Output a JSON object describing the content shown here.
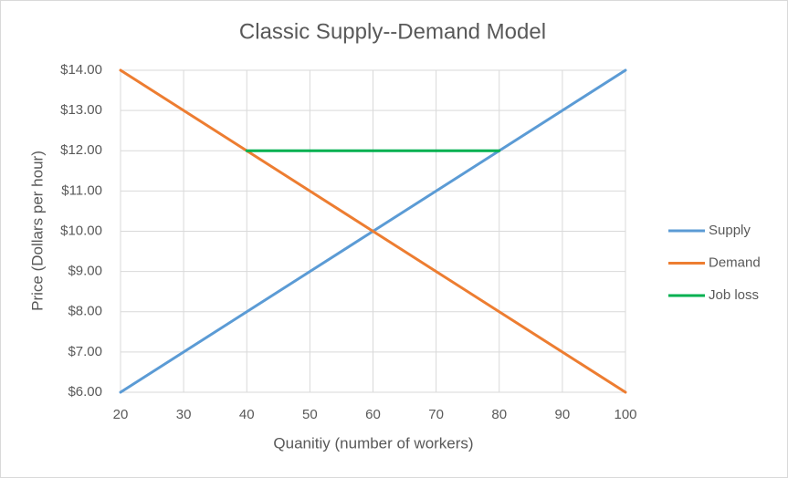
{
  "chart_data": {
    "type": "line",
    "title": "Classic Supply--Demand Model",
    "x_label": "Quanitiy (number of workers)",
    "y_label": "Price (Dollars per hour)",
    "xlim": [
      20,
      100
    ],
    "xticks": [
      20,
      30,
      40,
      50,
      60,
      70,
      80,
      90,
      100
    ],
    "ylim": [
      6,
      14
    ],
    "yticks": [
      {
        "value": 6,
        "label": "$6.00"
      },
      {
        "value": 7,
        "label": "$7.00"
      },
      {
        "value": 8,
        "label": "$8.00"
      },
      {
        "value": 9,
        "label": "$9.00"
      },
      {
        "value": 10,
        "label": "$10.00"
      },
      {
        "value": 11,
        "label": "$11.00"
      },
      {
        "value": 12,
        "label": "$12.00"
      },
      {
        "value": 13,
        "label": "$13.00"
      },
      {
        "value": 14,
        "label": "$14.00"
      }
    ],
    "grid": true,
    "legend": "right",
    "series": [
      {
        "name": "Supply",
        "color": "#5b9bd5",
        "x": [
          20,
          30,
          40,
          50,
          60,
          70,
          80,
          90,
          100
        ],
        "values": [
          6,
          7,
          8,
          9,
          10,
          11,
          12,
          13,
          14
        ]
      },
      {
        "name": "Demand",
        "color": "#ed7d31",
        "x": [
          20,
          30,
          40,
          50,
          60,
          70,
          80,
          90,
          100
        ],
        "values": [
          14,
          13,
          12,
          11,
          10,
          9,
          8,
          7,
          6
        ]
      },
      {
        "name": "Job loss",
        "color": "#00b050",
        "x": [
          40,
          80
        ],
        "values": [
          12,
          12
        ]
      }
    ]
  }
}
